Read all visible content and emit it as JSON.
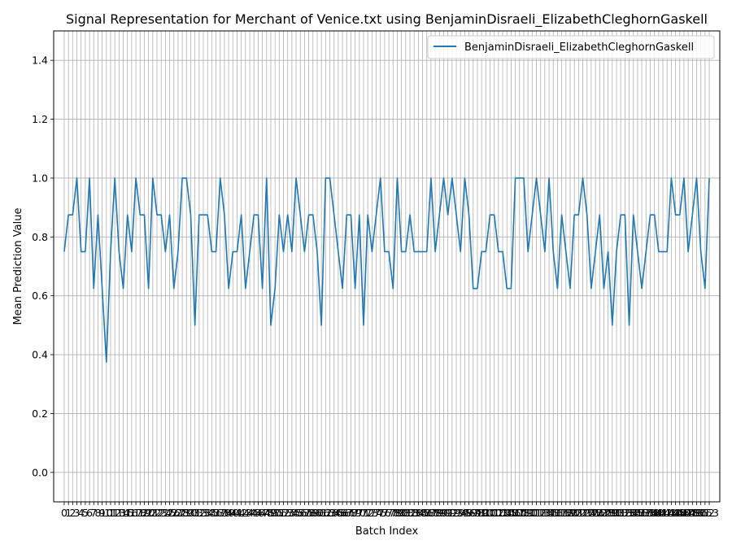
{
  "chart_data": {
    "type": "line",
    "title": "Signal Representation for Merchant of Venice.txt using BenjaminDisraeli_ElizabethCleghornGaskell",
    "xlabel": "Batch Index",
    "ylabel": "Mean Prediction Value",
    "xlim": [
      -2.5,
      155.5
    ],
    "ylim": [
      -0.1,
      1.5
    ],
    "yticks": [
      0.0,
      0.2,
      0.4,
      0.6,
      0.8,
      1.0,
      1.2,
      1.4
    ],
    "xtick_step": 1,
    "grid": true,
    "legend_position": "top-right",
    "series": [
      {
        "name": "BenjaminDisraeli_ElizabethCleghornGaskell",
        "color": "#1f77b4",
        "values": [
          0.75,
          0.875,
          0.875,
          1.0,
          0.75,
          0.75,
          1.0,
          0.625,
          0.875,
          0.625,
          0.375,
          0.75,
          1.0,
          0.75,
          0.625,
          0.875,
          0.75,
          1.0,
          0.875,
          0.875,
          0.625,
          1.0,
          0.875,
          0.875,
          0.75,
          0.875,
          0.625,
          0.75,
          1.0,
          1.0,
          0.875,
          0.5,
          0.875,
          0.875,
          0.875,
          0.75,
          0.75,
          1.0,
          0.875,
          0.625,
          0.75,
          0.75,
          0.875,
          0.625,
          0.75,
          0.875,
          0.875,
          0.625,
          1.0,
          0.5,
          0.625,
          0.875,
          0.75,
          0.875,
          0.75,
          1.0,
          0.875,
          0.75,
          0.875,
          0.875,
          0.75,
          0.5,
          1.0,
          1.0,
          0.875,
          0.75,
          0.625,
          0.875,
          0.875,
          0.625,
          0.875,
          0.5,
          0.875,
          0.75,
          0.875,
          1.0,
          0.75,
          0.75,
          0.625,
          1.0,
          0.75,
          0.75,
          0.875,
          0.75,
          0.75,
          0.75,
          0.75,
          1.0,
          0.75,
          0.875,
          1.0,
          0.875,
          1.0,
          0.875,
          0.75,
          1.0,
          0.875,
          0.625,
          0.625,
          0.75,
          0.75,
          0.875,
          0.875,
          0.75,
          0.75,
          0.625,
          0.625,
          1.0,
          1.0,
          1.0,
          0.75,
          0.875,
          1.0,
          0.875,
          0.75,
          1.0,
          0.75,
          0.625,
          0.875,
          0.75,
          0.625,
          0.875,
          0.875,
          1.0,
          0.875,
          0.625,
          0.75,
          0.875,
          0.625,
          0.75,
          0.5,
          0.75,
          0.875,
          0.875,
          0.5,
          0.875,
          0.75,
          0.625,
          0.75,
          0.875,
          0.875,
          0.75,
          0.75,
          0.75,
          1.0,
          0.875,
          0.875,
          1.0,
          0.75,
          0.875,
          1.0,
          0.75,
          0.625,
          1.0
        ]
      }
    ]
  }
}
